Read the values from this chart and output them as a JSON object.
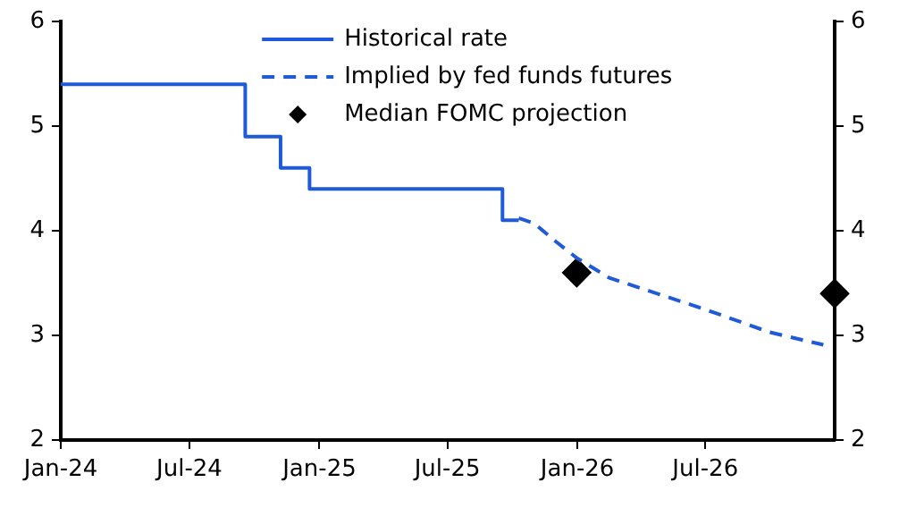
{
  "chart_data": {
    "type": "line",
    "series": [
      {
        "name": "Historical rate",
        "type": "step",
        "color": "#1f5bd6",
        "line_style": "solid",
        "x": [
          "2024-01-01",
          "2024-09-18",
          "2024-11-07",
          "2024-12-18",
          "2025-09-17",
          "2025-10-10"
        ],
        "values": [
          5.4,
          4.9,
          4.6,
          4.4,
          4.1,
          4.1
        ]
      },
      {
        "name": "Implied by fed funds futures",
        "type": "line",
        "color": "#1f5bd6",
        "line_style": "dashed",
        "x": [
          "2025-10-10",
          "2025-11-01",
          "2025-12-01",
          "2025-12-31",
          "2026-02-15",
          "2026-04-01",
          "2026-06-30",
          "2026-09-30",
          "2026-12-15"
        ],
        "values": [
          4.12,
          4.07,
          3.9,
          3.74,
          3.55,
          3.45,
          3.25,
          3.03,
          2.91
        ]
      },
      {
        "name": "Median FOMC projection",
        "type": "scatter",
        "color": "#000000",
        "marker": "diamond",
        "x": [
          "2025-12-31",
          "2026-12-31"
        ],
        "values": [
          3.6,
          3.4
        ]
      }
    ],
    "xlim": [
      "2024-01-01",
      "2026-12-31"
    ],
    "xticks": [
      {
        "value": "2024-01-01",
        "label": "Jan-24"
      },
      {
        "value": "2024-07-01",
        "label": "Jul-24"
      },
      {
        "value": "2025-01-01",
        "label": "Jan-25"
      },
      {
        "value": "2025-07-01",
        "label": "Jul-25"
      },
      {
        "value": "2026-01-01",
        "label": "Jan-26"
      },
      {
        "value": "2026-07-01",
        "label": "Jul-26"
      }
    ],
    "ylim": [
      2,
      6
    ],
    "yticks": [
      2,
      3,
      4,
      5,
      6
    ],
    "y2lim": [
      2,
      6
    ],
    "y2ticks": [
      2,
      3,
      4,
      5,
      6
    ],
    "grid": false,
    "legend": "top"
  }
}
